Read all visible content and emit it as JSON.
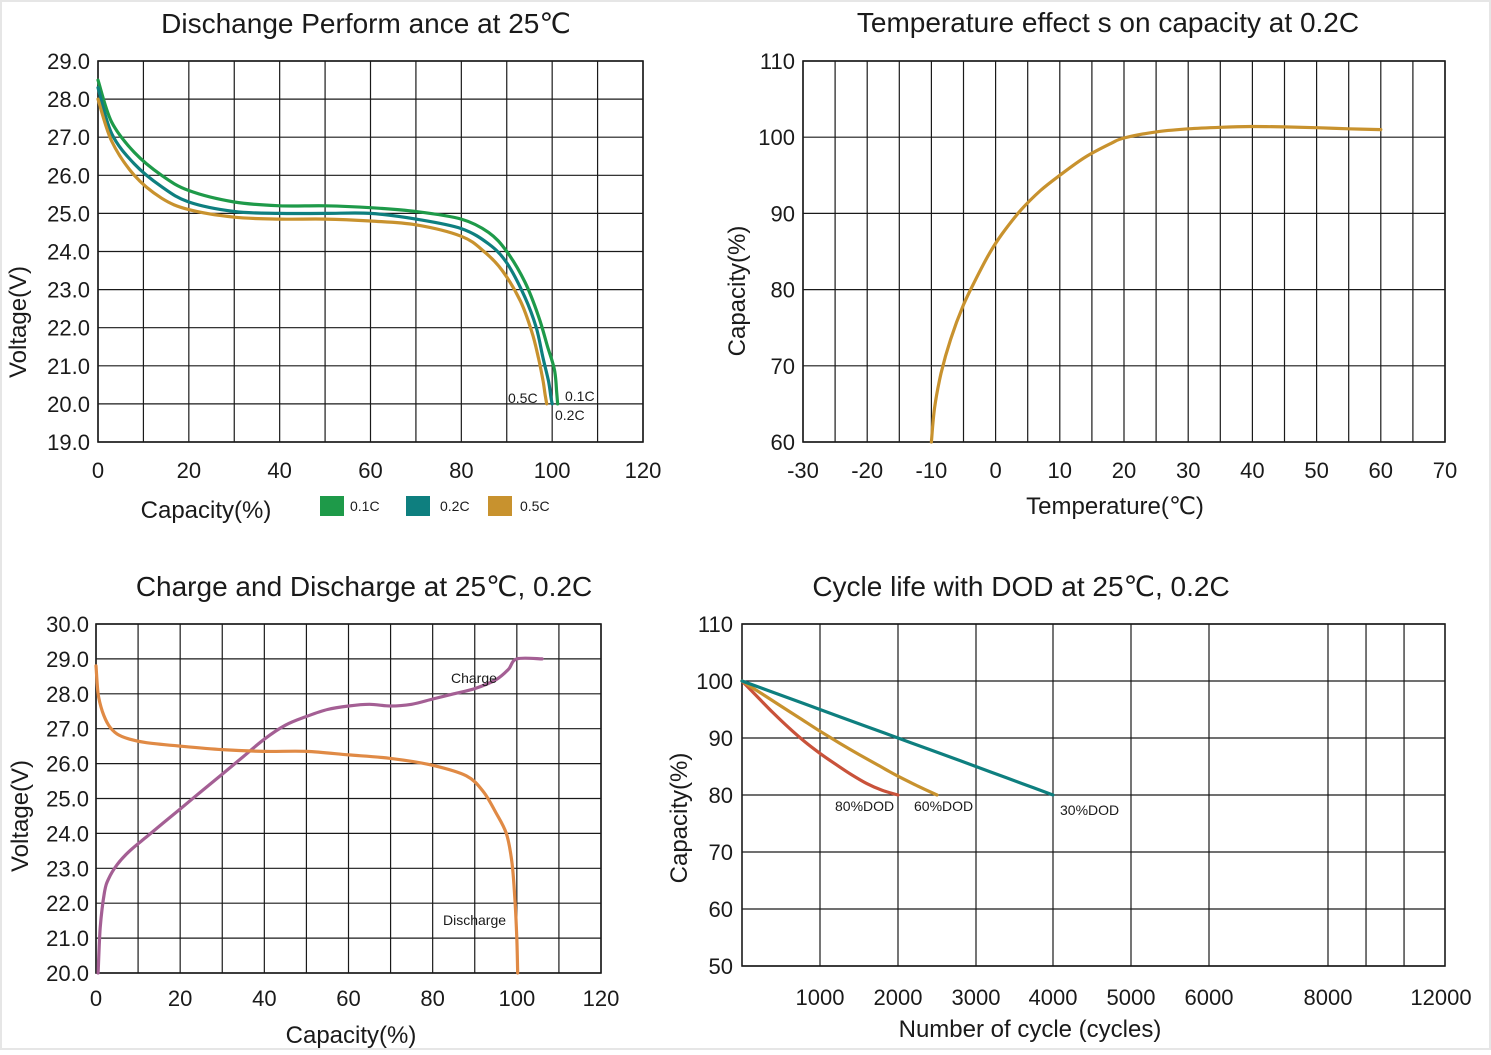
{
  "chart_data": [
    {
      "type": "line",
      "title": "Dischange Perform ance at 25℃",
      "xlabel": "Capacity(%)",
      "ylabel": "Voltage(V)",
      "xlim": [
        0,
        120
      ],
      "ylim": [
        19,
        29
      ],
      "x_ticks": [
        "0",
        "20",
        "40",
        "60",
        "80",
        "100",
        "120"
      ],
      "y_ticks": [
        "29.0",
        "28.0",
        "27.0",
        "26.0",
        "25.0",
        "24.0",
        "23.0",
        "22.0",
        "21.0",
        "20.0",
        "19.0"
      ],
      "x_tick_values": [
        0,
        20,
        40,
        60,
        80,
        100,
        120
      ],
      "y_tick_values": [
        29,
        28,
        27,
        26,
        25,
        24,
        23,
        22,
        21,
        20,
        19
      ],
      "legend": [
        "0.1C",
        "0.2C",
        "0.5C"
      ],
      "legend_colors": [
        "#1e9a49",
        "#0e7f7f",
        "#c8922e"
      ],
      "series": [
        {
          "name": "0.1C",
          "color": "#1e9a49",
          "x": [
            0,
            3,
            8,
            14,
            20,
            30,
            40,
            50,
            60,
            70,
            80,
            86,
            90,
            94,
            97,
            99,
            100.5,
            101,
            101.2
          ],
          "y": [
            28.5,
            27.4,
            26.6,
            26.0,
            25.6,
            25.3,
            25.2,
            25.2,
            25.15,
            25.05,
            24.85,
            24.5,
            24.0,
            23.2,
            22.3,
            21.5,
            20.9,
            20.3,
            20.0
          ]
        },
        {
          "name": "0.2C",
          "color": "#0e7f7f",
          "x": [
            0,
            3,
            8,
            14,
            20,
            30,
            40,
            50,
            60,
            70,
            80,
            86,
            90,
            94,
            96.5,
            98,
            99.2,
            99.7,
            100
          ],
          "y": [
            28.3,
            27.1,
            26.3,
            25.7,
            25.3,
            25.05,
            25.0,
            25.0,
            25.0,
            24.85,
            24.6,
            24.2,
            23.7,
            22.8,
            22.0,
            21.2,
            20.6,
            20.2,
            20.0
          ]
        },
        {
          "name": "0.5C",
          "color": "#c8922e",
          "x": [
            0,
            3,
            8,
            14,
            20,
            30,
            40,
            50,
            60,
            70,
            80,
            85,
            89,
            93,
            95.5,
            97,
            98,
            98.5,
            98.8
          ],
          "y": [
            28.0,
            26.9,
            26.0,
            25.4,
            25.1,
            24.9,
            24.85,
            24.85,
            24.8,
            24.7,
            24.4,
            24.0,
            23.5,
            22.7,
            21.9,
            21.2,
            20.6,
            20.2,
            20.0
          ]
        }
      ],
      "annotations": [
        "0.5C",
        "0.1C",
        "0.2C"
      ]
    },
    {
      "type": "line",
      "title": "Temperature effect s on capacity at 0.2C",
      "xlabel": "Temperature(℃)",
      "ylabel": "Capacity(%)",
      "xlim": [
        -30,
        70
      ],
      "ylim": [
        60,
        110
      ],
      "x_ticks": [
        "-30",
        "-20",
        "-10",
        "0",
        "10",
        "20",
        "30",
        "40",
        "50",
        "60",
        "70"
      ],
      "y_ticks": [
        "110",
        "100",
        "90",
        "80",
        "70",
        "60"
      ],
      "x_tick_values": [
        -30,
        -20,
        -10,
        0,
        10,
        20,
        30,
        40,
        50,
        60,
        70
      ],
      "y_tick_values": [
        110,
        100,
        90,
        80,
        70,
        60
      ],
      "series": [
        {
          "color": "#c8922e",
          "x": [
            -10,
            -9.5,
            -8.5,
            -7,
            -5,
            -3,
            -1,
            1,
            4,
            7,
            10,
            14,
            18,
            20,
            25,
            30,
            35,
            40,
            45,
            50,
            55,
            60
          ],
          "y": [
            60,
            64.5,
            69,
            73.5,
            78,
            81.5,
            84.7,
            87.3,
            90.5,
            93,
            95,
            97.4,
            99.2,
            99.9,
            100.7,
            101.1,
            101.3,
            101.4,
            101.35,
            101.25,
            101.1,
            101.0
          ]
        }
      ]
    },
    {
      "type": "line",
      "title": "Charge and Discharge at 25℃, 0.2C",
      "xlabel": "Capacity(%)",
      "ylabel": "Voltage(V)",
      "xlim": [
        0,
        120
      ],
      "ylim": [
        20,
        30
      ],
      "x_ticks": [
        "0",
        "20",
        "40",
        "60",
        "80",
        "100",
        "120"
      ],
      "y_ticks": [
        "30.0",
        "29.0",
        "28.0",
        "27.0",
        "26.0",
        "25.0",
        "24.0",
        "23.0",
        "22.0",
        "21.0",
        "20.0"
      ],
      "x_tick_values": [
        0,
        20,
        40,
        60,
        80,
        100,
        120
      ],
      "y_tick_values": [
        30,
        29,
        28,
        27,
        26,
        25,
        24,
        23,
        22,
        21,
        20
      ],
      "series": [
        {
          "name": "Charge",
          "color": "#a45f94",
          "x": [
            0.5,
            1,
            2,
            3,
            5,
            8,
            12,
            16,
            20,
            25,
            30,
            35,
            40,
            45,
            50,
            55,
            60,
            65,
            70,
            75,
            80,
            85,
            90,
            95,
            98,
            100,
            106
          ],
          "y": [
            20.0,
            21.3,
            22.3,
            22.7,
            23.1,
            23.5,
            23.9,
            24.3,
            24.7,
            25.2,
            25.7,
            26.2,
            26.7,
            27.1,
            27.35,
            27.55,
            27.65,
            27.7,
            27.65,
            27.7,
            27.85,
            28.0,
            28.15,
            28.4,
            28.7,
            29.0,
            29.0
          ]
        },
        {
          "name": "Discharge",
          "color": "#e08a45",
          "x": [
            0,
            0.5,
            1.5,
            3,
            5,
            8,
            12,
            20,
            30,
            40,
            50,
            60,
            70,
            80,
            88,
            92,
            95,
            97.5,
            98.8,
            99.5,
            100,
            100.2
          ],
          "y": [
            28.8,
            28.0,
            27.5,
            27.1,
            26.85,
            26.7,
            26.6,
            26.5,
            26.4,
            26.35,
            26.35,
            26.25,
            26.15,
            25.95,
            25.65,
            25.2,
            24.6,
            24.0,
            23.2,
            22.2,
            21.0,
            20.0
          ]
        }
      ],
      "annotations": [
        "Charge",
        "Discharge"
      ]
    },
    {
      "type": "line",
      "title": "Cycle life with DOD at 25℃, 0.2C",
      "xlabel": "Number of cycle (cycles)",
      "ylabel": "Capacity(%)",
      "ylim": [
        50,
        110
      ],
      "x_ticks": [
        "1000",
        "2000",
        "3000",
        "4000",
        "5000",
        "6000",
        "8000",
        "12000"
      ],
      "y_ticks": [
        "110",
        "100",
        "90",
        "80",
        "70",
        "60",
        "50"
      ],
      "x_tick_values": [
        1000,
        2000,
        3000,
        4000,
        5000,
        6000,
        8000,
        12000
      ],
      "y_tick_values": [
        110,
        100,
        90,
        80,
        70,
        60,
        50
      ],
      "series": [
        {
          "name": "80%DOD",
          "color": "#c9523a",
          "x": [
            0,
            200,
            400,
            600,
            800,
            1000,
            1200,
            1400,
            1600,
            1800,
            2000
          ],
          "y": [
            100,
            97.2,
            94.4,
            91.8,
            89.4,
            87.3,
            85.4,
            83.6,
            82.0,
            80.8,
            80.0
          ]
        },
        {
          "name": "60%DOD",
          "color": "#c8922e",
          "x": [
            0,
            250,
            500,
            750,
            1000,
            1250,
            1500,
            1750,
            2000,
            2250,
            2500
          ],
          "y": [
            100,
            97.8,
            95.6,
            93.4,
            91.2,
            89.1,
            87.1,
            85.2,
            83.3,
            81.6,
            80.0
          ]
        },
        {
          "name": "30%DOD",
          "color": "#0e7f7f",
          "x": [
            0,
            400,
            800,
            1200,
            1600,
            2000,
            2400,
            2800,
            3200,
            3600,
            4000
          ],
          "y": [
            100,
            98.0,
            96.0,
            94.0,
            92.0,
            90.0,
            88.0,
            86.0,
            84.0,
            82.0,
            80.0
          ]
        }
      ],
      "annotations": [
        "80%DOD",
        "60%DOD",
        "30%DOD"
      ]
    }
  ]
}
